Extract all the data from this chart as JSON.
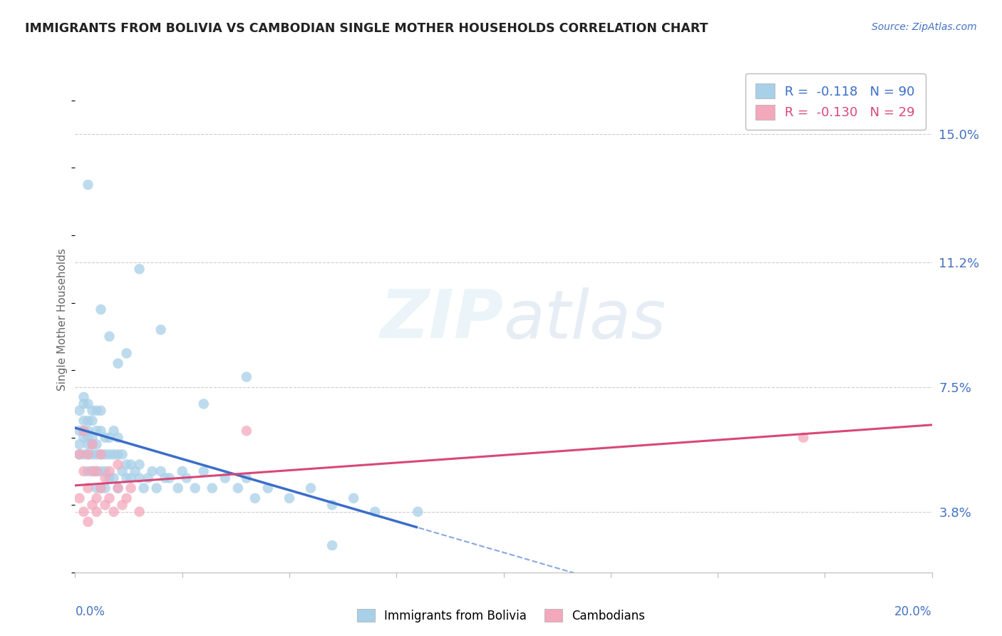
{
  "title": "IMMIGRANTS FROM BOLIVIA VS CAMBODIAN SINGLE MOTHER HOUSEHOLDS CORRELATION CHART",
  "source": "Source: ZipAtlas.com",
  "ylabel": "Single Mother Households",
  "ytick_values": [
    0.038,
    0.075,
    0.112,
    0.15
  ],
  "ytick_labels": [
    "3.8%",
    "7.5%",
    "11.2%",
    "15.0%"
  ],
  "xlim": [
    0.0,
    0.2
  ],
  "ylim": [
    0.02,
    0.17
  ],
  "legend1_label": "R =  -0.118   N = 90",
  "legend2_label": "R =  -0.130   N = 29",
  "legend_series1": "Immigrants from Bolivia",
  "legend_series2": "Cambodians",
  "blue_color": "#A8D0E8",
  "pink_color": "#F4A8BC",
  "trendline_blue": "#3A6EC8",
  "trendline_pink": "#D84878",
  "source_color": "#4472C4",
  "title_color": "#222222",
  "axis_label_color": "#4472C4",
  "grid_color": "#CCCCCC",
  "bg_color": "#FFFFFF",
  "bolivia_x": [
    0.001,
    0.001,
    0.001,
    0.001,
    0.002,
    0.002,
    0.002,
    0.002,
    0.002,
    0.002,
    0.003,
    0.003,
    0.003,
    0.003,
    0.003,
    0.003,
    0.003,
    0.004,
    0.004,
    0.004,
    0.004,
    0.004,
    0.004,
    0.005,
    0.005,
    0.005,
    0.005,
    0.005,
    0.005,
    0.006,
    0.006,
    0.006,
    0.006,
    0.006,
    0.007,
    0.007,
    0.007,
    0.007,
    0.008,
    0.008,
    0.008,
    0.009,
    0.009,
    0.009,
    0.01,
    0.01,
    0.01,
    0.011,
    0.011,
    0.012,
    0.012,
    0.013,
    0.013,
    0.014,
    0.015,
    0.015,
    0.016,
    0.017,
    0.018,
    0.019,
    0.02,
    0.021,
    0.022,
    0.024,
    0.025,
    0.026,
    0.028,
    0.03,
    0.032,
    0.035,
    0.038,
    0.04,
    0.042,
    0.045,
    0.05,
    0.055,
    0.06,
    0.065,
    0.07,
    0.08,
    0.003,
    0.006,
    0.008,
    0.01,
    0.012,
    0.015,
    0.02,
    0.03,
    0.04,
    0.06
  ],
  "bolivia_y": [
    0.062,
    0.058,
    0.068,
    0.055,
    0.06,
    0.065,
    0.07,
    0.055,
    0.062,
    0.072,
    0.055,
    0.06,
    0.065,
    0.07,
    0.05,
    0.058,
    0.062,
    0.055,
    0.06,
    0.065,
    0.05,
    0.058,
    0.068,
    0.05,
    0.055,
    0.062,
    0.068,
    0.045,
    0.058,
    0.05,
    0.055,
    0.062,
    0.068,
    0.045,
    0.055,
    0.06,
    0.05,
    0.045,
    0.055,
    0.06,
    0.048,
    0.055,
    0.062,
    0.048,
    0.055,
    0.06,
    0.045,
    0.055,
    0.05,
    0.052,
    0.048,
    0.052,
    0.048,
    0.05,
    0.048,
    0.052,
    0.045,
    0.048,
    0.05,
    0.045,
    0.05,
    0.048,
    0.048,
    0.045,
    0.05,
    0.048,
    0.045,
    0.05,
    0.045,
    0.048,
    0.045,
    0.048,
    0.042,
    0.045,
    0.042,
    0.045,
    0.04,
    0.042,
    0.038,
    0.038,
    0.135,
    0.098,
    0.09,
    0.082,
    0.085,
    0.11,
    0.092,
    0.07,
    0.078,
    0.028
  ],
  "cambodia_x": [
    0.001,
    0.001,
    0.002,
    0.002,
    0.002,
    0.003,
    0.003,
    0.003,
    0.004,
    0.004,
    0.004,
    0.005,
    0.005,
    0.005,
    0.006,
    0.006,
    0.007,
    0.007,
    0.008,
    0.008,
    0.009,
    0.01,
    0.01,
    0.011,
    0.012,
    0.013,
    0.015,
    0.17,
    0.04
  ],
  "cambodia_y": [
    0.055,
    0.042,
    0.05,
    0.038,
    0.062,
    0.045,
    0.055,
    0.035,
    0.05,
    0.04,
    0.058,
    0.042,
    0.05,
    0.038,
    0.045,
    0.055,
    0.04,
    0.048,
    0.042,
    0.05,
    0.038,
    0.045,
    0.052,
    0.04,
    0.042,
    0.045,
    0.038,
    0.06,
    0.062
  ],
  "blue_trendline_solid_end": 0.08,
  "watermark_text": "ZIPatlas"
}
